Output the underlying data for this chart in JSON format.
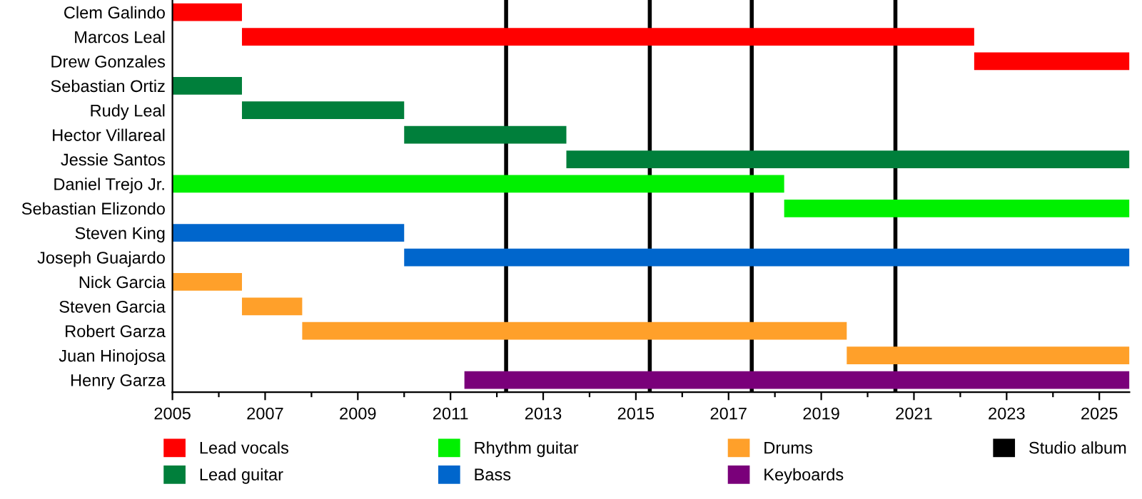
{
  "chart_data": {
    "type": "bar",
    "orientation": "horizontal",
    "categories": [
      "Clem Galindo",
      "Marcos Leal",
      "Drew Gonzales",
      "Sebastian Ortiz",
      "Rudy Leal",
      "Hector Villareal",
      "Jessie Santos",
      "Daniel Trejo Jr.",
      "Sebastian Elizondo",
      "Steven King",
      "Joseph Guajardo",
      "Nick Garcia",
      "Steven Garcia",
      "Robert Garza",
      "Juan Hinojosa",
      "Henry Garza"
    ],
    "series": [
      {
        "name": "Lead vocals",
        "color": "#ff0000",
        "base": [
          2005,
          2006.5,
          2022.3,
          null,
          null,
          null,
          null,
          null,
          null,
          null,
          null,
          null,
          null,
          null,
          null,
          null
        ],
        "values": [
          1.5,
          15.8,
          3.35,
          null,
          null,
          null,
          null,
          null,
          null,
          null,
          null,
          null,
          null,
          null,
          null,
          null
        ]
      },
      {
        "name": "Lead guitar",
        "color": "#007f3b",
        "base": [
          null,
          null,
          null,
          2005,
          2006.5,
          2010,
          2013.5,
          null,
          null,
          null,
          null,
          null,
          null,
          null,
          null,
          null
        ],
        "values": [
          null,
          null,
          null,
          1.5,
          3.5,
          3.5,
          12.15,
          null,
          null,
          null,
          null,
          null,
          null,
          null,
          null,
          null
        ]
      },
      {
        "name": "Rhythm guitar",
        "color": "#00f000",
        "base": [
          null,
          null,
          null,
          null,
          null,
          null,
          null,
          2005,
          2018.2,
          null,
          null,
          null,
          null,
          null,
          null,
          null
        ],
        "values": [
          null,
          null,
          null,
          null,
          null,
          null,
          null,
          13.2,
          7.45,
          null,
          null,
          null,
          null,
          null,
          null,
          null
        ]
      },
      {
        "name": "Bass",
        "color": "#0066cc",
        "base": [
          null,
          null,
          null,
          null,
          null,
          null,
          null,
          null,
          null,
          2005,
          2010,
          null,
          null,
          null,
          null,
          null
        ],
        "values": [
          null,
          null,
          null,
          null,
          null,
          null,
          null,
          null,
          null,
          5,
          15.65,
          null,
          null,
          null,
          null,
          null
        ]
      },
      {
        "name": "Drums",
        "color": "#ffa02a",
        "base": [
          null,
          null,
          null,
          null,
          null,
          null,
          null,
          null,
          null,
          null,
          null,
          2005,
          2006.5,
          2007.8,
          2019.55,
          null
        ],
        "values": [
          null,
          null,
          null,
          null,
          null,
          null,
          null,
          null,
          null,
          null,
          null,
          1.5,
          1.3,
          11.75,
          6.1,
          null
        ]
      },
      {
        "name": "Keyboards",
        "color": "#7a007a",
        "base": [
          null,
          null,
          null,
          null,
          null,
          null,
          null,
          null,
          null,
          null,
          null,
          null,
          null,
          null,
          null,
          2011.3
        ],
        "values": [
          null,
          null,
          null,
          null,
          null,
          null,
          null,
          null,
          null,
          null,
          null,
          null,
          null,
          null,
          null,
          14.35
        ]
      }
    ],
    "ref_lines": [
      {
        "axis": "x",
        "value": 2012.2,
        "label": "Studio album",
        "color": "#000000"
      },
      {
        "axis": "x",
        "value": 2015.3,
        "color": "#000000"
      },
      {
        "axis": "x",
        "value": 2017.5,
        "color": "#000000"
      },
      {
        "axis": "x",
        "value": 2020.6,
        "color": "#000000"
      }
    ],
    "xlim": [
      2005,
      2025.65
    ],
    "xticks": [
      2005,
      {
        "value": 2006,
        "label": null
      },
      2007,
      {
        "value": 2008,
        "label": null
      },
      2009,
      {
        "value": 2010,
        "label": null
      },
      2011,
      {
        "value": 2012,
        "label": null
      },
      2013,
      {
        "value": 2014,
        "label": null
      },
      2015,
      {
        "value": 2016,
        "label": null
      },
      2017,
      {
        "value": 2018,
        "label": null
      },
      2019,
      {
        "value": 2020,
        "label": null
      },
      2021,
      {
        "value": 2022,
        "label": null
      },
      2023,
      {
        "value": 2024,
        "label": null
      },
      2025
    ],
    "grid": false,
    "legend": "bottom"
  }
}
